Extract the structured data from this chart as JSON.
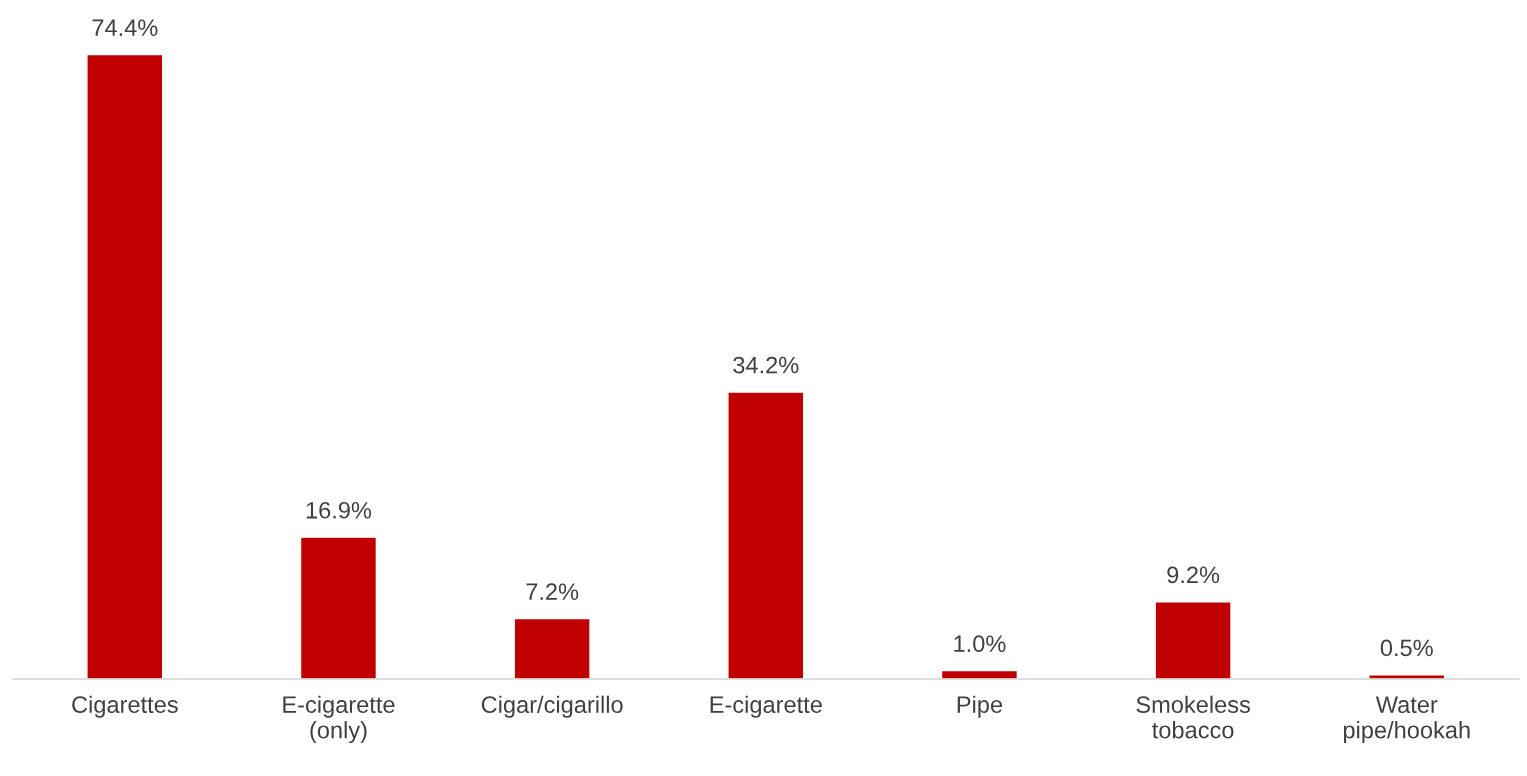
{
  "chart_data": {
    "type": "bar",
    "categories": [
      "Cigarettes",
      "E-cigarette\n(only)",
      "Cigar/cigarillo",
      "E-cigarette",
      "Pipe",
      "Smokeless\ntobacco",
      "Water\npipe/hookah"
    ],
    "values": [
      74.4,
      16.9,
      7.2,
      34.2,
      1.0,
      9.2,
      0.5
    ],
    "value_labels": [
      "74.4%",
      "16.9%",
      "7.2%",
      "34.2%",
      "1.0%",
      "9.2%",
      "0.5%"
    ],
    "color": "#c00000",
    "grid": false,
    "legend": false
  }
}
